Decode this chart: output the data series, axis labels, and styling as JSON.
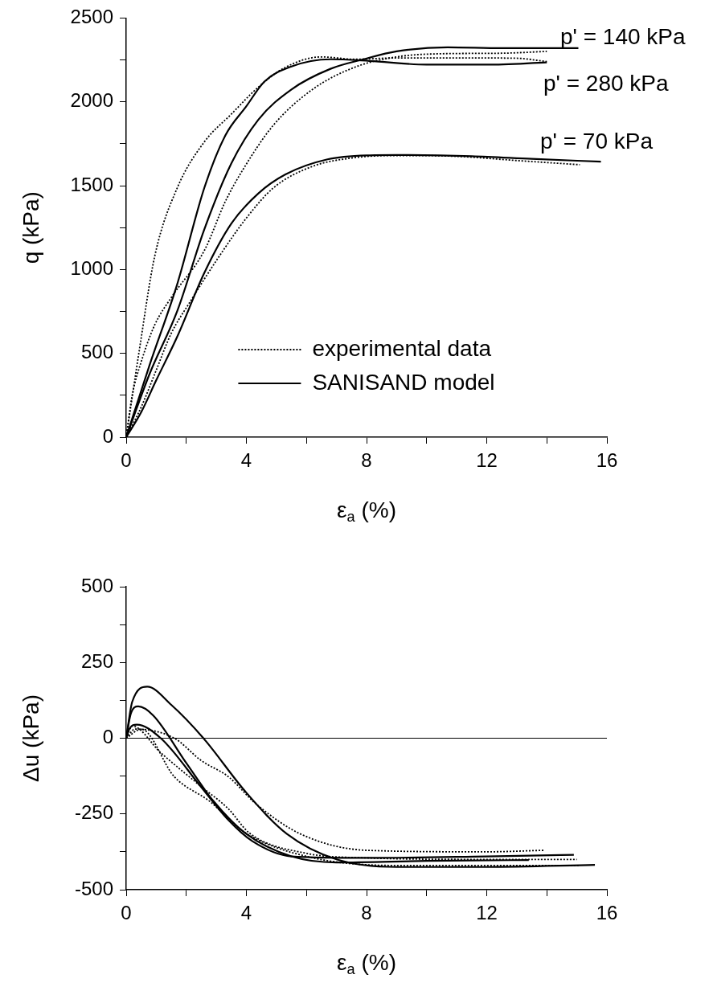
{
  "chart_data": [
    {
      "type": "line",
      "xlabel": "ε$_{a}$ (%)",
      "ylabel": "q (kPa)",
      "xlim": [
        0,
        16
      ],
      "xticks": [
        0,
        {
          "value": 2,
          "label": null
        },
        4,
        {
          "value": 6,
          "label": null
        },
        8,
        {
          "value": 10,
          "label": null
        },
        12,
        {
          "value": 14,
          "label": null
        },
        16
      ],
      "ylim": [
        0,
        2500
      ],
      "yticks": [
        0,
        {
          "value": 250,
          "label": null
        },
        500,
        {
          "value": 750,
          "label": null
        },
        1000,
        {
          "value": 1250,
          "label": null
        },
        1500,
        {
          "value": 1750,
          "label": null
        },
        2000,
        {
          "value": 2250,
          "label": null
        },
        2500
      ],
      "legend": "bottom",
      "series": [
        {
          "name": "experimental data",
          "color": "#000000",
          "line_style": "dotted",
          "x": [
            0,
            0.5,
            1.0,
            1.5,
            2.1,
            3.1,
            4.0,
            4.9,
            6.2,
            7.6,
            9.0,
            11,
            13,
            15.1
          ],
          "values": [
            0,
            180,
            400,
            620,
            800,
            1080,
            1307,
            1487,
            1615,
            1667,
            1680,
            1675,
            1650,
            1625
          ]
        },
        {
          "name": "SANISAND model",
          "color": "#000000",
          "line_style": "solid",
          "x": [
            0,
            0.5,
            1.0,
            1.7,
            2.6,
            3.5,
            4.4,
            5.3,
            6.7,
            8.1,
            9.0,
            11.5,
            13.5,
            15.8
          ],
          "values": [
            0,
            150,
            340,
            600,
            980,
            1274,
            1454,
            1567,
            1657,
            1681,
            1683,
            1676,
            1660,
            1643
          ]
        },
        {
          "color": "#000000",
          "line_style": "dotted",
          "x": [
            0,
            0.2,
            0.5,
            0.95,
            1.5,
            2.6,
            3.3,
            3.9,
            4.9,
            6.2,
            7.6,
            9.0,
            10.5,
            12.5,
            14.0
          ],
          "values": [
            0,
            250,
            450,
            670,
            833,
            1113,
            1406,
            1600,
            1861,
            2074,
            2206,
            2268,
            2287,
            2290,
            2301
          ]
        },
        {
          "color": "#000000",
          "line_style": "solid",
          "x": [
            0,
            0.77,
            1.7,
            2.6,
            3.5,
            4.4,
            5.5,
            6.8,
            7.9,
            9.0,
            10.7,
            12.5,
            15.05
          ],
          "values": [
            0,
            374,
            753,
            1240,
            1633,
            1894,
            2074,
            2197,
            2254,
            2301,
            2325,
            2320,
            2320
          ]
        },
        {
          "color": "#000000",
          "line_style": "dotted",
          "x": [
            0,
            0.42,
            0.95,
            1.7,
            2.6,
            3.5,
            4.4,
            5.3,
            6.5,
            7.6,
            9,
            11,
            13,
            14.0
          ],
          "values": [
            0,
            500,
            1080,
            1487,
            1761,
            1927,
            2088,
            2206,
            2268,
            2254,
            2262,
            2262,
            2260,
            2240
          ]
        },
        {
          "color": "#000000",
          "line_style": "solid",
          "x": [
            0,
            0.77,
            1.7,
            2.6,
            3.3,
            4.0,
            4.6,
            5.5,
            6.8,
            8.1,
            10,
            12,
            14.0
          ],
          "values": [
            0,
            426,
            914,
            1487,
            1800,
            1974,
            2121,
            2211,
            2254,
            2244,
            2222,
            2222,
            2235
          ]
        }
      ],
      "annotations": [
        "p' = 140 kPa",
        "p' = 280 kPa",
        "p' = 70 kPa"
      ]
    },
    {
      "type": "line",
      "xlabel": "ε$_{a}$ (%)",
      "ylabel": "Δu (kPa)",
      "xlim": [
        0,
        16
      ],
      "xticks": [
        0,
        {
          "value": 2,
          "label": null
        },
        4,
        {
          "value": 6,
          "label": null
        },
        8,
        {
          "value": 10,
          "label": null
        },
        12,
        {
          "value": 14,
          "label": null
        },
        16
      ],
      "ylim": [
        -500,
        500
      ],
      "yticks": [
        -500,
        {
          "value": -375,
          "label": null
        },
        -250,
        {
          "value": -125,
          "label": null
        },
        0,
        {
          "value": 125,
          "label": null
        },
        250,
        {
          "value": 375,
          "label": null
        },
        500
      ],
      "ref_lines": [
        {
          "axis": "y",
          "value": 0,
          "color": "#000000"
        }
      ],
      "series": [
        {
          "color": "#000000",
          "line_style": "dotted",
          "x": [
            0,
            0.3,
            1.6,
            2.5,
            3.4,
            4.3,
            5.8,
            8,
            12,
            13.9
          ],
          "values": [
            0,
            30,
            0,
            -74,
            -127,
            -215,
            -316,
            -370,
            -375,
            -370
          ]
        },
        {
          "color": "#000000",
          "line_style": "solid",
          "x": [
            0,
            0.2,
            0.7,
            1.5,
            2.57,
            4.0,
            5.35,
            7,
            9,
            12,
            15.6
          ],
          "values": [
            0,
            120,
            170,
            110,
            0,
            -180,
            -316,
            -400,
            -425,
            -425,
            -418
          ]
        },
        {
          "color": "#000000",
          "line_style": "dotted",
          "x": [
            0,
            0.2,
            1.15,
            2.5,
            3.4,
            4.1,
            6,
            8,
            12,
            15
          ],
          "values": [
            0,
            40,
            -48,
            -160,
            -233,
            -313,
            -380,
            -395,
            -400,
            -400
          ]
        },
        {
          "color": "#000000",
          "line_style": "solid",
          "x": [
            0,
            0.15,
            0.4,
            0.9,
            2.0,
            2.9,
            4.0,
            5.5,
            7,
            10,
            13.4
          ],
          "values": [
            0,
            80,
            105,
            75,
            -82,
            -207,
            -316,
            -390,
            -410,
            -405,
            -402
          ]
        },
        {
          "color": "#000000",
          "line_style": "dotted",
          "x": [
            0,
            0.5,
            1.6,
            2.8,
            3.9,
            6,
            9,
            12,
            15.1
          ],
          "values": [
            0,
            30,
            -127,
            -210,
            -308,
            -390,
            -420,
            -420,
            -420
          ]
        },
        {
          "color": "#000000",
          "line_style": "solid",
          "x": [
            0,
            0.1,
            0.35,
            1.15,
            2.5,
            3.4,
            4.2,
            5.5,
            8,
            12,
            14.9
          ],
          "values": [
            0,
            30,
            45,
            0,
            -162,
            -270,
            -340,
            -390,
            -395,
            -390,
            -385
          ]
        }
      ]
    }
  ]
}
